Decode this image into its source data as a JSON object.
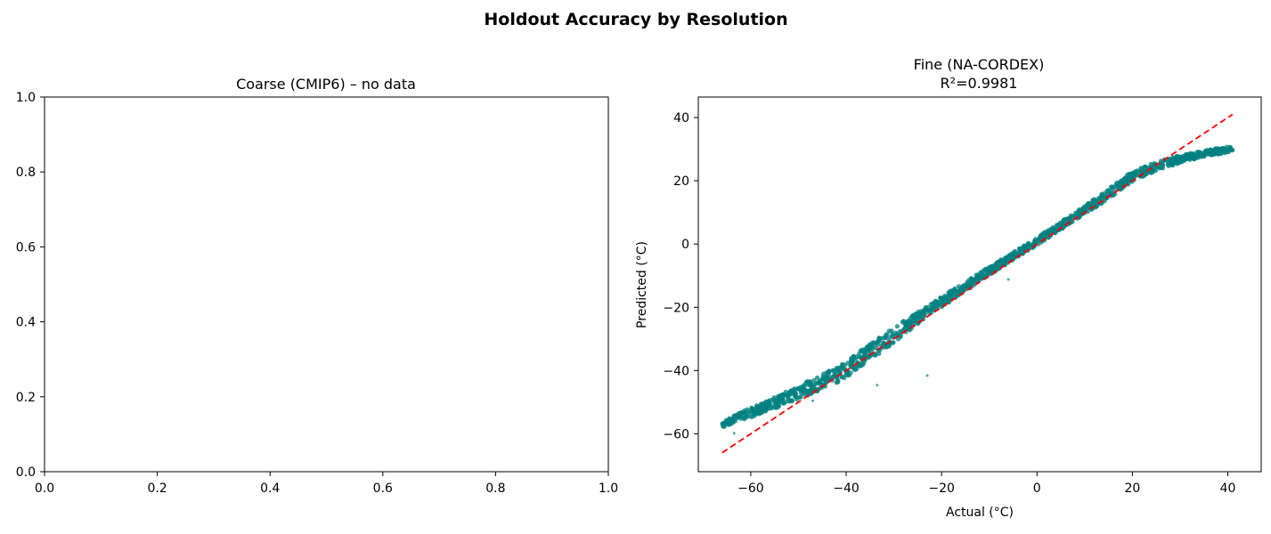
{
  "figure": {
    "suptitle": "Holdout Accuracy by Resolution"
  },
  "chart_data": [
    {
      "type": "scatter",
      "title": "Coarse (CMIP6) – no data",
      "xlabel": "",
      "ylabel": "",
      "xlim": [
        0,
        1
      ],
      "ylim": [
        0,
        1
      ],
      "x_ticks": [
        "0.0",
        "0.2",
        "0.4",
        "0.6",
        "0.8",
        "1.0"
      ],
      "y_ticks": [
        "0.0",
        "0.2",
        "0.4",
        "0.6",
        "0.8",
        "1.0"
      ],
      "series": [],
      "grid": false
    },
    {
      "type": "scatter",
      "title": "Fine (NA-CORDEX)",
      "subtitle": "R²=0.9981",
      "xlabel": "Actual (°C)",
      "ylabel": "Predicted (°C)",
      "xlim": [
        -71,
        47
      ],
      "ylim": [
        -72,
        46.5
      ],
      "x_ticks": [
        "−60",
        "−40",
        "−20",
        "0",
        "20",
        "40"
      ],
      "y_ticks": [
        "−60",
        "−40",
        "−20",
        "0",
        "20",
        "40"
      ],
      "x_tick_values": [
        -60,
        -40,
        -20,
        0,
        20,
        40
      ],
      "y_tick_values": [
        -60,
        -40,
        -20,
        0,
        20,
        40
      ],
      "grid": false,
      "point_color": "#008080",
      "reference_line": {
        "x": [
          -66,
          41
        ],
        "y": [
          -66,
          41
        ],
        "color": "#ff0000",
        "style": "dashed"
      },
      "series": [
        {
          "trend_x": [
            -66,
            -60,
            -55,
            -50,
            -45,
            -40,
            -35,
            -30,
            -25,
            -20,
            -15,
            -10,
            -5,
            0,
            5,
            10,
            15,
            18,
            20,
            25,
            30,
            35,
            40,
            41
          ],
          "trend_y": [
            -56.8,
            -53.3,
            -50.2,
            -46.9,
            -43.6,
            -39.8,
            -34.2,
            -28.7,
            -23.4,
            -18.3,
            -13.4,
            -8.5,
            -3.8,
            0.9,
            5.8,
            10.8,
            15.8,
            19.4,
            21.3,
            24.6,
            26.9,
            28.6,
            29.9,
            30.3
          ],
          "spread": [
            1.2,
            1.5,
            1.8,
            2.1,
            2.4,
            2.7,
            2.7,
            2.4,
            2.0,
            1.7,
            1.5,
            1.3,
            1.2,
            1.2,
            1.2,
            1.3,
            1.6,
            1.7,
            1.6,
            1.4,
            1.2,
            1.0,
            0.9,
            0.8
          ],
          "outliers": [
            {
              "x": -63.5,
              "y": -59.8
            },
            {
              "x": -47,
              "y": -49.6
            },
            {
              "x": -33.5,
              "y": -44.6
            },
            {
              "x": -23,
              "y": -41.6
            },
            {
              "x": -6,
              "y": -11.2
            },
            {
              "x": 38.5,
              "y": 28.5
            }
          ]
        }
      ]
    }
  ]
}
